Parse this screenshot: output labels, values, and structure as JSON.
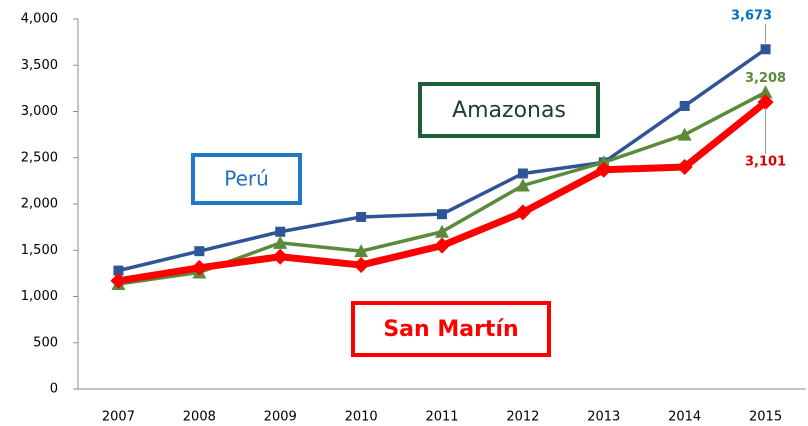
{
  "chart_data": {
    "type": "line",
    "categories": [
      "2007",
      "2008",
      "2009",
      "2010",
      "2011",
      "2012",
      "2013",
      "2014",
      "2015"
    ],
    "series": [
      {
        "name": "Perú",
        "color": "#2f5597",
        "marker": "square",
        "values": [
          1280,
          1490,
          1700,
          1860,
          1890,
          2330,
          2450,
          3060,
          3673
        ],
        "value_labels": [
          null,
          null,
          null,
          null,
          null,
          null,
          null,
          null,
          "3,673"
        ],
        "label_color": "#0070c0"
      },
      {
        "name": "Amazonas",
        "color": "#5b8a3a",
        "marker": "triangle",
        "values": [
          1135,
          1260,
          1580,
          1490,
          1700,
          2200,
          2450,
          2750,
          3208
        ],
        "value_labels": [
          null,
          null,
          null,
          null,
          null,
          null,
          null,
          null,
          "3,208"
        ],
        "label_color": "#5b8a3a"
      },
      {
        "name": "San Martín",
        "color": "#ff0000",
        "marker": "diamond",
        "values": [
          1170,
          1310,
          1430,
          1340,
          1550,
          1910,
          2370,
          2400,
          3101
        ],
        "value_labels": [
          null,
          null,
          null,
          null,
          null,
          null,
          null,
          null,
          "3,101"
        ],
        "label_color": "#e00000"
      }
    ],
    "ylim": [
      0,
      4000
    ],
    "yticks": [
      0,
      500,
      {
        "value": 1000,
        "label": "1,000"
      },
      {
        "value": 1500,
        "label": "1,500"
      },
      {
        "value": 2000,
        "label": "2,000"
      },
      {
        "value": 2500,
        "label": "2,500"
      },
      {
        "value": 3000,
        "label": "3,000"
      },
      {
        "value": 3500,
        "label": "3,500"
      },
      {
        "value": 4000,
        "label": "4,000"
      }
    ],
    "grid": false
  }
}
